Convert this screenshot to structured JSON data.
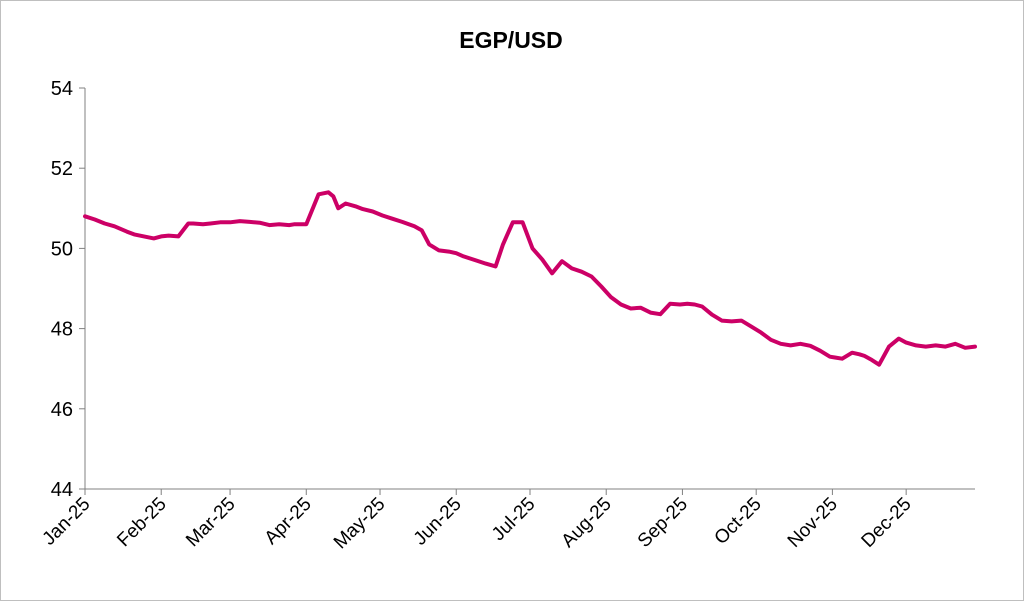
{
  "chart_data": {
    "type": "line",
    "title": "EGP/USD",
    "xlabel": "",
    "ylabel": "",
    "ylim": [
      44,
      54
    ],
    "y_ticks": [
      44,
      46,
      48,
      50,
      52,
      54
    ],
    "x_range": [
      "2025-01-01",
      "2025-12-29"
    ],
    "x_tick_labels": [
      "Jan-25",
      "Feb-25",
      "Mar-25",
      "Apr-25",
      "May-25",
      "Jun-25",
      "Jul-25",
      "Aug-25",
      "Sep-25",
      "Oct-25",
      "Nov-25",
      "Dec-25"
    ],
    "x_tick_dates": [
      "2025-01-01",
      "2025-02-01",
      "2025-03-01",
      "2025-04-01",
      "2025-05-01",
      "2025-06-01",
      "2025-07-01",
      "2025-08-01",
      "2025-09-01",
      "2025-10-01",
      "2025-11-01",
      "2025-12-01"
    ],
    "grid": false,
    "legend": "none",
    "line_color": "#cc0066",
    "series": [
      {
        "x": [
          "2025-01-01",
          "2025-01-05",
          "2025-01-09",
          "2025-01-13",
          "2025-01-18",
          "2025-01-21",
          "2025-01-25",
          "2025-01-29",
          "2025-02-01",
          "2025-02-04",
          "2025-02-08",
          "2025-02-12",
          "2025-02-14",
          "2025-02-18",
          "2025-02-21",
          "2025-02-25",
          "2025-03-01",
          "2025-03-05",
          "2025-03-09",
          "2025-03-13",
          "2025-03-17",
          "2025-03-21",
          "2025-03-25",
          "2025-03-27",
          "2025-03-29",
          "2025-04-01",
          "2025-04-06",
          "2025-04-10",
          "2025-04-12",
          "2025-04-14",
          "2025-04-17",
          "2025-04-21",
          "2025-04-24",
          "2025-04-28",
          "2025-05-02",
          "2025-05-06",
          "2025-05-10",
          "2025-05-15",
          "2025-05-18",
          "2025-05-21",
          "2025-05-25",
          "2025-05-29",
          "2025-06-01",
          "2025-06-04",
          "2025-06-09",
          "2025-06-13",
          "2025-06-17",
          "2025-06-20",
          "2025-06-24",
          "2025-06-28",
          "2025-07-02",
          "2025-07-06",
          "2025-07-10",
          "2025-07-14",
          "2025-07-18",
          "2025-07-22",
          "2025-07-26",
          "2025-07-30",
          "2025-08-03",
          "2025-08-07",
          "2025-08-11",
          "2025-08-15",
          "2025-08-19",
          "2025-08-23",
          "2025-08-27",
          "2025-08-31",
          "2025-09-03",
          "2025-09-06",
          "2025-09-09",
          "2025-09-13",
          "2025-09-17",
          "2025-09-21",
          "2025-09-25",
          "2025-09-29",
          "2025-10-03",
          "2025-10-07",
          "2025-10-11",
          "2025-10-15",
          "2025-10-19",
          "2025-10-23",
          "2025-10-27",
          "2025-10-31",
          "2025-11-02",
          "2025-11-05",
          "2025-11-09",
          "2025-11-12",
          "2025-11-14",
          "2025-11-17",
          "2025-11-20",
          "2025-11-24",
          "2025-11-28",
          "2025-12-01",
          "2025-12-05",
          "2025-12-09",
          "2025-12-13",
          "2025-12-17",
          "2025-12-21",
          "2025-12-25",
          "2025-12-29"
        ],
        "y": [
          50.8,
          50.72,
          50.62,
          50.55,
          50.42,
          50.35,
          50.3,
          50.25,
          50.3,
          50.32,
          50.3,
          50.62,
          50.62,
          50.6,
          50.62,
          50.65,
          50.65,
          50.68,
          50.66,
          50.64,
          50.58,
          50.6,
          50.58,
          50.6,
          50.6,
          50.6,
          51.35,
          51.4,
          51.3,
          51.0,
          51.12,
          51.05,
          50.98,
          50.92,
          50.82,
          50.74,
          50.66,
          50.55,
          50.45,
          50.1,
          49.95,
          49.92,
          49.88,
          49.8,
          49.7,
          49.62,
          49.55,
          50.1,
          50.65,
          50.65,
          50.0,
          49.72,
          49.38,
          49.68,
          49.5,
          49.42,
          49.3,
          49.05,
          48.78,
          48.6,
          48.5,
          48.52,
          48.4,
          48.36,
          48.62,
          48.6,
          48.62,
          48.6,
          48.55,
          48.35,
          48.2,
          48.18,
          48.2,
          48.05,
          47.9,
          47.72,
          47.62,
          47.58,
          47.62,
          47.57,
          47.45,
          47.3,
          47.28,
          47.25,
          47.4,
          47.36,
          47.32,
          47.22,
          47.1,
          47.55,
          47.75,
          47.65,
          47.58,
          47.55,
          47.58,
          47.55,
          47.62,
          47.52,
          47.55
        ]
      }
    ]
  }
}
